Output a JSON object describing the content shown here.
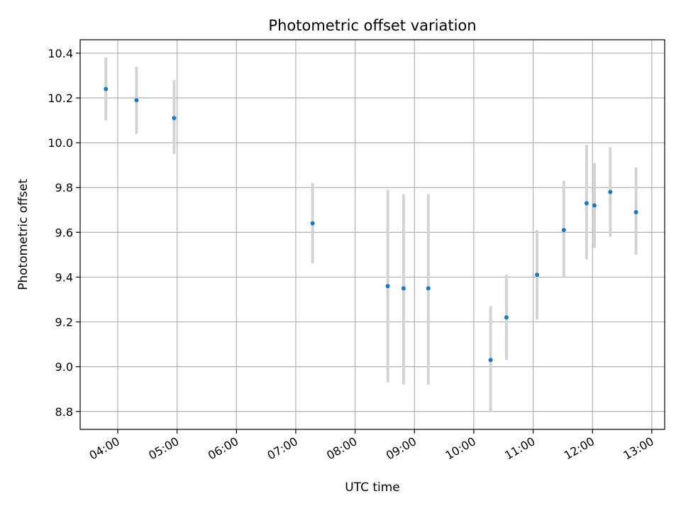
{
  "chart_data": {
    "type": "scatter",
    "title": "Photometric offset variation",
    "xlabel": "UTC time",
    "ylabel": "Photometric offset",
    "xlim": [
      "03:22",
      "13:13"
    ],
    "ylim": [
      8.72,
      10.46
    ],
    "grid": true,
    "x_ticks": [
      "04:00",
      "05:00",
      "06:00",
      "07:00",
      "08:00",
      "09:00",
      "10:00",
      "11:00",
      "12:00",
      "13:00"
    ],
    "y_ticks": [
      8.8,
      9.0,
      9.2,
      9.4,
      9.6,
      9.8,
      10.0,
      10.2,
      10.4
    ],
    "colors": {
      "point": "#1f77b4",
      "errorbar": "#d3d3d3",
      "grid": "#b0b0b0"
    },
    "points": [
      {
        "x": "03:48",
        "y": 10.24,
        "err_low": 10.1,
        "err_high": 10.38
      },
      {
        "x": "04:19",
        "y": 10.19,
        "err_low": 10.04,
        "err_high": 10.34
      },
      {
        "x": "04:57",
        "y": 10.11,
        "err_low": 9.95,
        "err_high": 10.28
      },
      {
        "x": "07:17",
        "y": 9.64,
        "err_low": 9.46,
        "err_high": 9.82
      },
      {
        "x": "08:33",
        "y": 9.36,
        "err_low": 8.93,
        "err_high": 9.79
      },
      {
        "x": "08:49",
        "y": 9.35,
        "err_low": 8.92,
        "err_high": 9.77
      },
      {
        "x": "09:14",
        "y": 9.35,
        "err_low": 8.92,
        "err_high": 9.77
      },
      {
        "x": "10:17",
        "y": 9.03,
        "err_low": 8.8,
        "err_high": 9.27
      },
      {
        "x": "10:33",
        "y": 9.22,
        "err_low": 9.03,
        "err_high": 9.41
      },
      {
        "x": "11:04",
        "y": 9.41,
        "err_low": 9.21,
        "err_high": 9.61
      },
      {
        "x": "11:31",
        "y": 9.61,
        "err_low": 9.4,
        "err_high": 9.83
      },
      {
        "x": "11:54",
        "y": 9.73,
        "err_low": 9.48,
        "err_high": 9.99
      },
      {
        "x": "12:02",
        "y": 9.72,
        "err_low": 9.53,
        "err_high": 9.91
      },
      {
        "x": "12:18",
        "y": 9.78,
        "err_low": 9.58,
        "err_high": 9.98
      },
      {
        "x": "12:44",
        "y": 9.69,
        "err_low": 9.5,
        "err_high": 9.89
      }
    ]
  }
}
